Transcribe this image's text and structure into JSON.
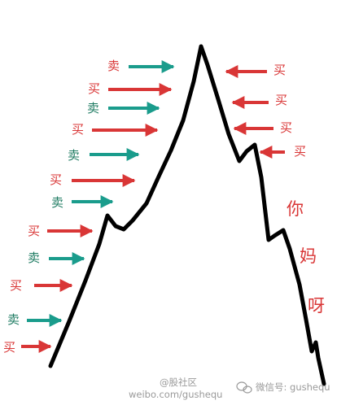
{
  "labels": {
    "sell": "卖",
    "buy": "买"
  },
  "colors": {
    "buy": "#d93636",
    "sell": "#1e7b62",
    "sell_arrow": "#1a9c8c",
    "line": "#000000",
    "watermark": "#9a9a9a"
  },
  "phrase": [
    "你",
    "妈",
    "呀"
  ],
  "watermark": {
    "line1": "@股社区",
    "line2": "weibo.com/gushequ",
    "wechat": "微信号: gushequ"
  },
  "icons": {
    "arrow_shape": "right-arrow",
    "wechat": "wechat-icon"
  }
}
